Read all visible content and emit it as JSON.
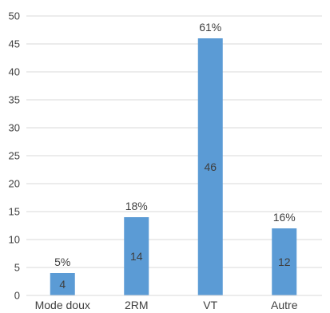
{
  "chart_data": {
    "type": "bar",
    "categories": [
      "Mode doux",
      "2RM",
      "VT",
      "Autre"
    ],
    "values": [
      4,
      14,
      46,
      12
    ],
    "percent_labels": [
      "5%",
      "18%",
      "61%",
      "16%"
    ],
    "ylim": [
      0,
      50
    ],
    "y_ticks": [
      "0",
      "5",
      "10",
      "15",
      "20",
      "25",
      "30",
      "35",
      "40",
      "45",
      "50"
    ],
    "grid": true,
    "legend": "none",
    "bar_color": "#5b9bd5",
    "grid_color": "#d9d9d9",
    "text_color": "#3f3f3f"
  }
}
